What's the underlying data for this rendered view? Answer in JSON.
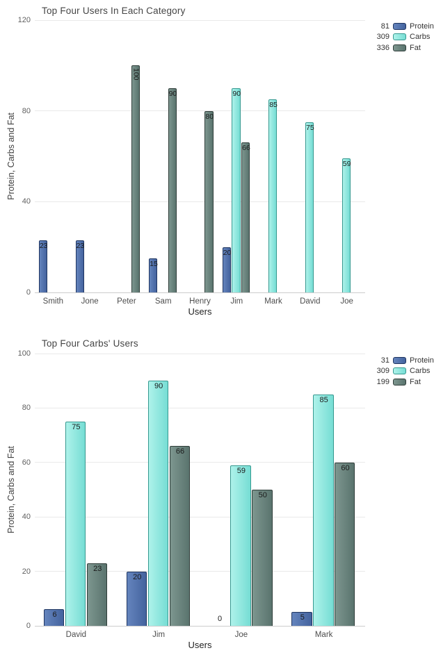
{
  "chart_data": [
    {
      "type": "bar",
      "title": "Top Four Users In Each Category",
      "xlabel": "Users",
      "ylabel": "Protein, Carbs and Fat",
      "ylim": [
        0,
        120
      ],
      "ytick_step": 40,
      "grid": true,
      "legend_position": "top-right",
      "categories": [
        "Smith",
        "Jone",
        "Peter",
        "Sam",
        "Henry",
        "Jim",
        "Mark",
        "David",
        "Joe"
      ],
      "series": [
        {
          "name": "Protein",
          "legend_value": "81",
          "color_key": "protein",
          "values": [
            23,
            23,
            null,
            15,
            null,
            20,
            null,
            null,
            null
          ]
        },
        {
          "name": "Carbs",
          "legend_value": "309",
          "color_key": "carbs",
          "values": [
            null,
            null,
            null,
            null,
            null,
            90,
            85,
            75,
            59
          ]
        },
        {
          "name": "Fat",
          "legend_value": "336",
          "color_key": "fat",
          "values": [
            null,
            null,
            100,
            90,
            80,
            66,
            null,
            null,
            null
          ]
        }
      ]
    },
    {
      "type": "bar",
      "title": "Top Four Carbs' Users",
      "xlabel": "Users",
      "ylabel": "Protein, Carbs and Fat",
      "ylim": [
        0,
        100
      ],
      "ytick_step": 20,
      "grid": true,
      "legend_position": "top-right",
      "categories": [
        "David",
        "Jim",
        "Joe",
        "Mark"
      ],
      "series": [
        {
          "name": "Protein",
          "legend_value": "31",
          "color_key": "protein",
          "values": [
            6,
            20,
            0,
            5
          ]
        },
        {
          "name": "Carbs",
          "legend_value": "309",
          "color_key": "carbs",
          "values": [
            75,
            90,
            59,
            85
          ]
        },
        {
          "name": "Fat",
          "legend_value": "199",
          "color_key": "fat",
          "values": [
            23,
            66,
            50,
            60
          ]
        }
      ]
    }
  ],
  "colors": {
    "protein": {
      "fill": "#44639e",
      "fill_light": "#6484bd",
      "border": "#1f3560"
    },
    "carbs": {
      "fill": "#76ddd4",
      "fill_light": "#aef2ea",
      "border": "#35988f"
    },
    "fat": {
      "fill": "#5a746e",
      "fill_light": "#7d968f",
      "border": "#2f3d39"
    },
    "gridline": "#e9e9e9",
    "axis_line": "#cccccc",
    "title_text": "#454545",
    "tick_text": "#5f5f5f",
    "value_label_text": "#1a1a1a"
  }
}
